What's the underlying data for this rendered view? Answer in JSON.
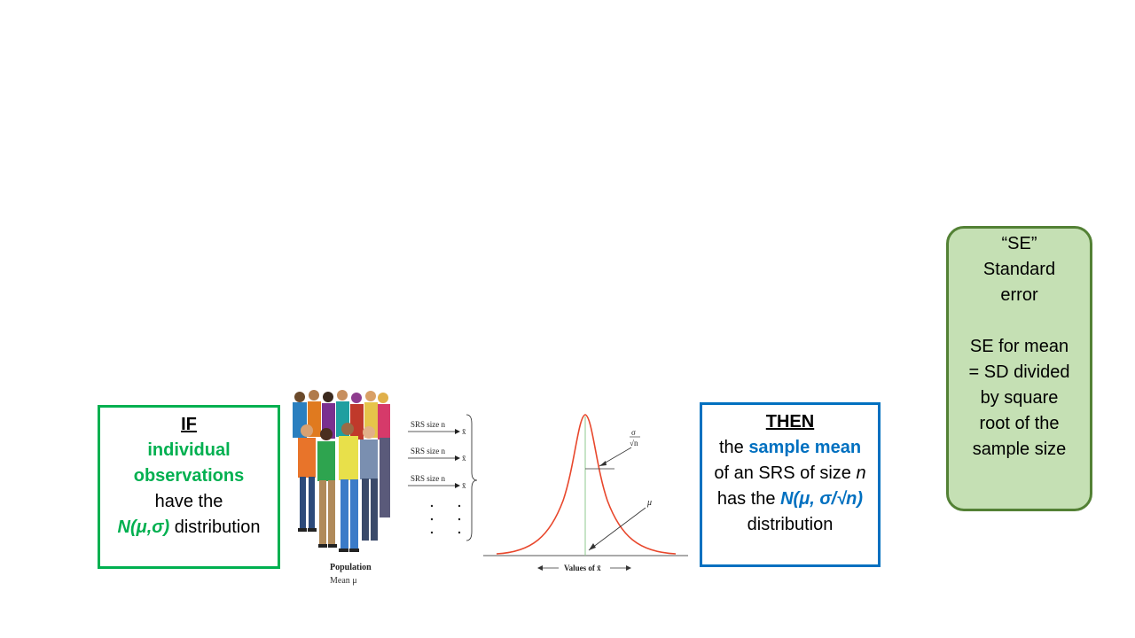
{
  "if_box": {
    "heading": "IF",
    "line1": "individual",
    "line2": "observations",
    "line3": "have the",
    "dist": "N(μ,σ)",
    "dist_suffix": " distribution"
  },
  "illustration": {
    "srs_labels": [
      "SRS size n",
      "SRS size n",
      "SRS size n"
    ],
    "xbar": "x̄",
    "population_title": "Population",
    "population_mean": "Mean μ"
  },
  "curve": {
    "sigma_label": "σ",
    "sqrt_n_label": "√n",
    "mu_label": "μ",
    "axis_label": "Values of x̄"
  },
  "then_box": {
    "heading": "THEN",
    "line1_prefix": "the ",
    "line1_highlight": "sample mean",
    "line2_prefix": "of an SRS of size ",
    "line2_var": "n",
    "line3_prefix": "has the ",
    "dist": "N(μ, σ/√n)",
    "line4": "distribution"
  },
  "se_box": {
    "line1": "“SE”",
    "line2": "Standard",
    "line3": "error",
    "line4": "SE for mean",
    "line5": "= SD divided",
    "line6": "by square",
    "line7": "root of the",
    "line8": "sample size"
  },
  "colors": {
    "green": "#00b050",
    "blue": "#0070c0",
    "se_fill": "#c5e0b4",
    "se_border": "#538135",
    "curve": "#e8472c"
  }
}
